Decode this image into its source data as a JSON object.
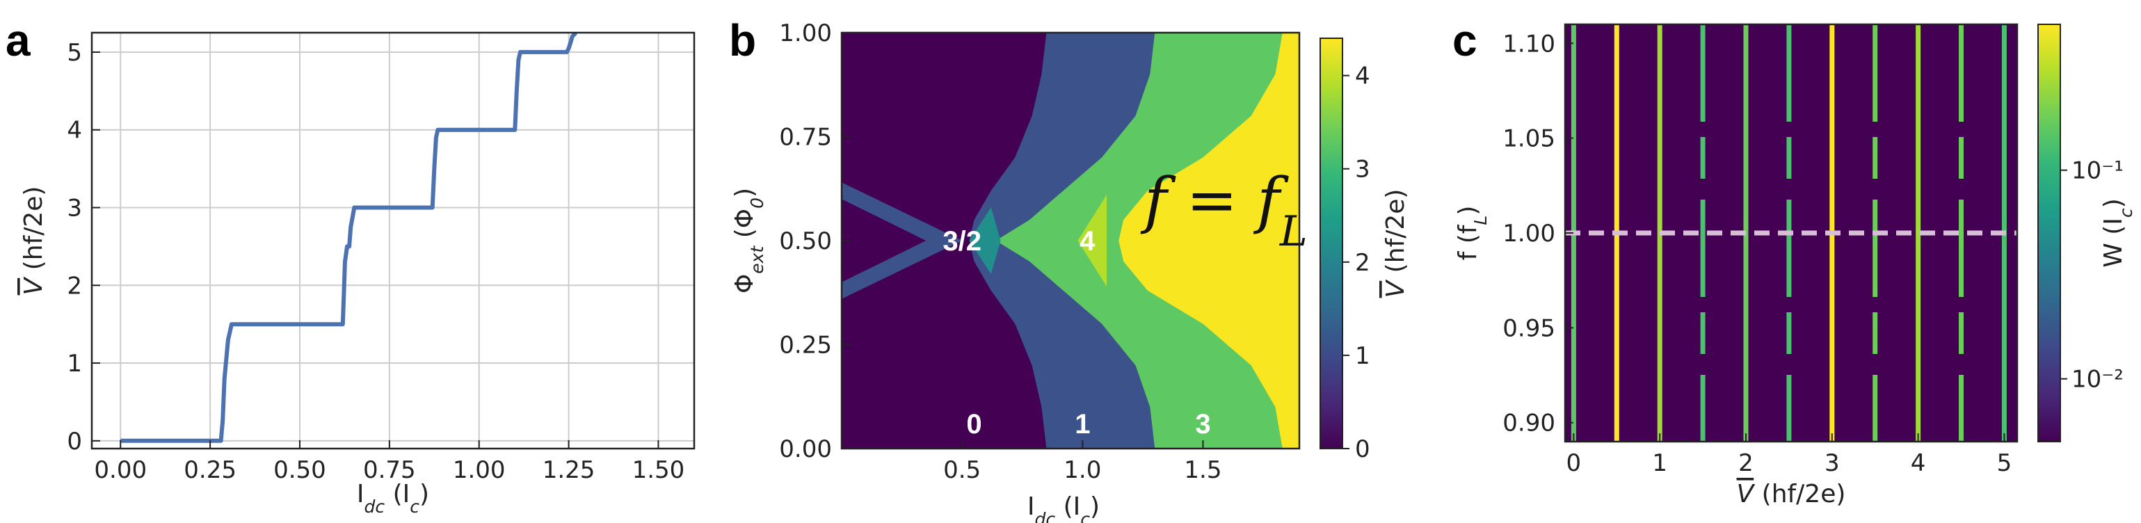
{
  "panels": {
    "a": {
      "letter": "a"
    },
    "b": {
      "letter": "b",
      "formula": "f = f_L",
      "formula_display": "f = fL"
    },
    "c": {
      "letter": "c"
    }
  },
  "chart_data": [
    {
      "id": "a",
      "type": "line",
      "xlabel": "I_dc (I_c)",
      "ylabel": "V̄ (hf/2e)",
      "xlim": [
        -0.08,
        1.6
      ],
      "ylim": [
        -0.1,
        5.25
      ],
      "grid": true,
      "xticks": [
        "0.00",
        "0.25",
        "0.50",
        "0.75",
        "1.00",
        "1.25",
        "1.50"
      ],
      "xtick_values": [
        0,
        0.25,
        0.5,
        0.75,
        1.0,
        1.25,
        1.5
      ],
      "yticks": [
        "0",
        "1",
        "2",
        "3",
        "4",
        "5"
      ],
      "ytick_values": [
        0,
        1,
        2,
        3,
        4,
        5
      ],
      "color": "#4c72b0",
      "series": [
        {
          "x": [
            0.0,
            0.28,
            0.285,
            0.29,
            0.3,
            0.31,
            0.62,
            0.623,
            0.626,
            0.632,
            0.638,
            0.642,
            0.648,
            0.652,
            0.66,
            0.87,
            0.875,
            0.88,
            0.885,
            1.1,
            1.105,
            1.11,
            1.115,
            1.245,
            1.25,
            1.255,
            1.26,
            1.27
          ],
          "y": [
            0.0,
            0.0,
            0.25,
            0.8,
            1.3,
            1.5,
            1.5,
            1.9,
            2.3,
            2.5,
            2.5,
            2.75,
            2.9,
            3.0,
            3.0,
            3.0,
            3.5,
            3.9,
            4.0,
            4.0,
            4.5,
            4.9,
            5.0,
            5.0,
            5.05,
            5.12,
            5.2,
            5.3
          ]
        }
      ]
    },
    {
      "id": "b",
      "type": "heatmap",
      "xlabel": "I_dc  (I_c)",
      "ylabel": "Φ_ext (Φ_0)",
      "xlim": [
        0.0,
        1.9
      ],
      "ylim": [
        0.0,
        1.0
      ],
      "xticks": [
        "0.5",
        "1.0",
        "1.5"
      ],
      "xtick_values": [
        0.5,
        1.0,
        1.5
      ],
      "yticks": [
        "0.00",
        "0.25",
        "0.50",
        "0.75",
        "1.00"
      ],
      "ytick_values": [
        0.0,
        0.25,
        0.5,
        0.75,
        1.0
      ],
      "colorbar": {
        "label": "V̄ (hf/2e)",
        "range": [
          0,
          4.4
        ],
        "ticks": [
          "0",
          "1",
          "2",
          "3",
          "4"
        ],
        "tick_values": [
          0,
          1,
          2,
          3,
          4
        ]
      },
      "regions": [
        {
          "value": 0,
          "color": "#440154",
          "label": "0"
        },
        {
          "value": 1,
          "color": "#3b528b",
          "label": "1"
        },
        {
          "value": 1.5,
          "color": "#3b528b",
          "label": "3/2"
        },
        {
          "value": 2,
          "color": "#21908d",
          "label": ""
        },
        {
          "value": 3,
          "color": "#5ec962",
          "label": "3"
        },
        {
          "value": 4,
          "color": "#b5de2b",
          "label": "4"
        },
        {
          "value": 4.4,
          "color": "#f8e621",
          "label": ""
        }
      ],
      "boundaries": {
        "phi": [
          0.0,
          0.1,
          0.2,
          0.3,
          0.38,
          0.45,
          0.5,
          0.55,
          0.62,
          0.7,
          0.8,
          0.9,
          1.0
        ],
        "zero_to_one": [
          0.85,
          0.83,
          0.79,
          0.72,
          0.62,
          0.55,
          0.53,
          0.55,
          0.62,
          0.72,
          0.79,
          0.83,
          0.85
        ],
        "one_to_three": [
          1.3,
          1.28,
          1.22,
          1.08,
          0.92,
          0.78,
          0.64,
          0.78,
          0.92,
          1.08,
          1.22,
          1.28,
          1.3
        ],
        "three_to_top": [
          1.83,
          1.8,
          1.7,
          1.5,
          1.27,
          1.17,
          1.15,
          1.17,
          1.27,
          1.5,
          1.7,
          1.8,
          1.83
        ],
        "left_tip_low": 0.4,
        "left_tip_high": 0.6
      },
      "annotations": [
        {
          "text": "0",
          "x": 0.55,
          "y": 0.06
        },
        {
          "text": "1",
          "x": 1.0,
          "y": 0.06
        },
        {
          "text": "3",
          "x": 1.5,
          "y": 0.06
        },
        {
          "text": "3/2",
          "x": 0.5,
          "y": 0.5
        },
        {
          "text": "4",
          "x": 1.02,
          "y": 0.5
        }
      ]
    },
    {
      "id": "c",
      "type": "heatmap",
      "xlabel": "V̄ (hf/2e)",
      "ylabel": "f (f_L)",
      "xlim": [
        -0.1,
        5.15
      ],
      "ylim": [
        0.89,
        1.11
      ],
      "xticks": [
        "0",
        "1",
        "2",
        "3",
        "4",
        "5"
      ],
      "xtick_values": [
        0,
        1,
        2,
        3,
        4,
        5
      ],
      "yticks": [
        "0.90",
        "0.95",
        "1.00",
        "1.05",
        "1.10"
      ],
      "ytick_values": [
        0.9,
        0.95,
        1.0,
        1.05,
        1.1
      ],
      "colorbar": {
        "label": "W (I_c)",
        "scale": "log",
        "range": [
          0.005,
          0.5
        ],
        "ticks": [
          "10⁻²",
          "10⁻¹"
        ],
        "tick_values": [
          0.01,
          0.1
        ]
      },
      "background_color": "#440154",
      "reference_line": {
        "y": 1.0,
        "style": "dashed",
        "color": "#d8bfd8"
      },
      "lines": [
        {
          "x": 0.0,
          "color": "#5ec962"
        },
        {
          "x": 0.5,
          "color": "#fde725"
        },
        {
          "x": 1.0,
          "color": "#a0da39"
        },
        {
          "x": 1.5,
          "color": "#4ac16d"
        },
        {
          "x": 2.0,
          "color": "#6ccd5a"
        },
        {
          "x": 2.5,
          "color": "#4ac16d"
        },
        {
          "x": 3.0,
          "color": "#fde725"
        },
        {
          "x": 3.5,
          "color": "#6ccd5a"
        },
        {
          "x": 4.0,
          "color": "#a0da39"
        },
        {
          "x": 4.5,
          "color": "#6ccd5a"
        },
        {
          "x": 5.0,
          "color": "#4ac16d"
        }
      ]
    }
  ]
}
